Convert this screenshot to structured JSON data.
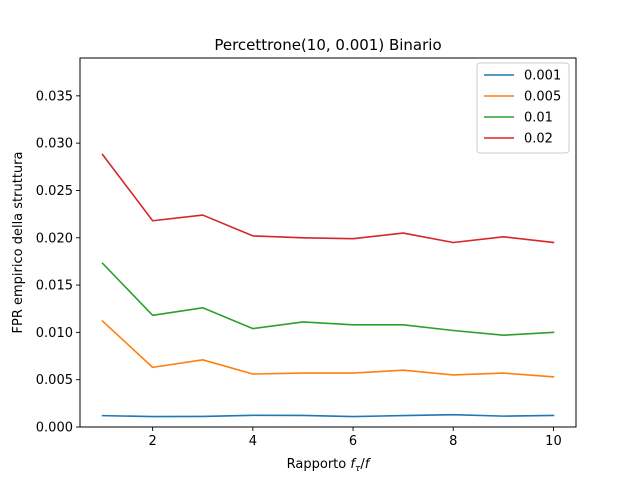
{
  "chart_data": {
    "type": "line",
    "title": "Percettrone(10, 0.001) Binario",
    "xlabel": "Rapporto f_τ/f",
    "ylabel": "FPR empirico della struttura",
    "xlim": [
      0.55,
      10.45
    ],
    "ylim": [
      0,
      0.039
    ],
    "xticks": [
      2,
      4,
      6,
      8,
      10
    ],
    "yticks": [
      0.0,
      0.005,
      0.01,
      0.015,
      0.02,
      0.025,
      0.03,
      0.035
    ],
    "ytick_labels": [
      "0.000",
      "0.005",
      "0.010",
      "0.015",
      "0.020",
      "0.025",
      "0.030",
      "0.035"
    ],
    "grid": false,
    "legend_position": "top-right",
    "x": [
      1,
      2,
      3,
      4,
      5,
      6,
      7,
      8,
      9,
      10
    ],
    "series": [
      {
        "name": "0.001",
        "color": "#1f77b4",
        "values": [
          0.0012,
          0.0011,
          0.00112,
          0.00123,
          0.00122,
          0.0011,
          0.00121,
          0.0013,
          0.00115,
          0.00122
        ]
      },
      {
        "name": "0.005",
        "color": "#ff7f0e",
        "values": [
          0.0112,
          0.0063,
          0.0071,
          0.0056,
          0.0057,
          0.0057,
          0.006,
          0.0055,
          0.0057,
          0.0053
        ]
      },
      {
        "name": "0.01",
        "color": "#2ca02c",
        "values": [
          0.0173,
          0.0118,
          0.0126,
          0.0104,
          0.0111,
          0.0108,
          0.0108,
          0.0102,
          0.0097,
          0.01
        ]
      },
      {
        "name": "0.02",
        "color": "#d62728",
        "values": [
          0.0288,
          0.0218,
          0.0224,
          0.0202,
          0.02,
          0.0199,
          0.0205,
          0.0195,
          0.0201,
          0.0195
        ]
      }
    ]
  }
}
